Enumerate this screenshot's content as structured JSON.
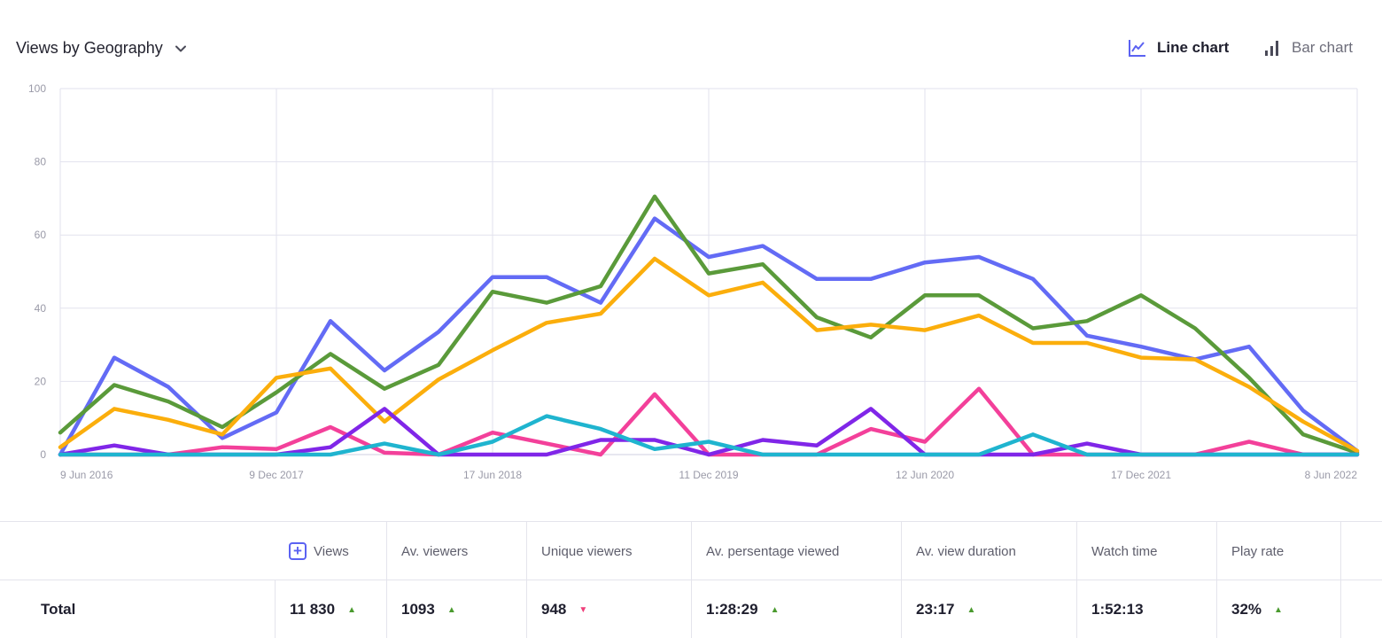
{
  "header": {
    "title": "Views by Geography",
    "line_chart_label": "Line chart",
    "bar_chart_label": "Bar chart",
    "active_view": "line"
  },
  "chart_data": {
    "type": "line",
    "x_labels": [
      "9 Jun 2016",
      "9 Dec 2017",
      "17 Jun 2018",
      "11 Dec 2019",
      "12 Jun 2020",
      "17 Dec 2021",
      "8 Jun 2022"
    ],
    "x_points": 24,
    "y_ticks": [
      0,
      20,
      40,
      60,
      80,
      100
    ],
    "ylim": [
      0,
      100
    ],
    "grid": true,
    "legend": "none",
    "series": [
      {
        "color": "#636bf5",
        "values": [
          0,
          26.5,
          18.5,
          4.5,
          11.5,
          36.5,
          23,
          33.5,
          48.5,
          48.5,
          41.5,
          64.5,
          54,
          57,
          48,
          48,
          52.5,
          54,
          48,
          32.5,
          29.5,
          26,
          29.5,
          12,
          1
        ]
      },
      {
        "color": "#5a9a3a",
        "values": [
          6,
          19,
          14.5,
          7.5,
          17,
          27.5,
          18,
          24.5,
          44.5,
          41.5,
          46,
          70.5,
          49.5,
          52,
          37.5,
          32,
          43.5,
          43.5,
          34.5,
          36.5,
          43.5,
          34.5,
          21,
          5.5,
          0.5
        ]
      },
      {
        "color": "#fbae0c",
        "values": [
          2,
          12.5,
          9.5,
          5.5,
          21,
          23.5,
          9,
          20.5,
          28.5,
          36,
          38.5,
          53.5,
          43.5,
          47,
          34,
          35.5,
          34,
          38,
          30.5,
          30.5,
          26.5,
          26,
          18.5,
          9,
          1
        ]
      },
      {
        "color": "#f3409a",
        "values": [
          0,
          0,
          0,
          2,
          1.5,
          7.5,
          0.5,
          0,
          6,
          3,
          0,
          16.5,
          0,
          0,
          0,
          7,
          3.5,
          18,
          0,
          0,
          0,
          0,
          3.5,
          0,
          0
        ]
      },
      {
        "color": "#8026e8",
        "values": [
          0,
          2.5,
          0,
          0,
          0,
          2,
          12.5,
          0,
          0,
          0,
          4,
          4,
          0,
          4,
          2.5,
          12.5,
          0,
          0,
          0,
          3,
          0,
          0,
          0,
          0,
          0
        ]
      },
      {
        "color": "#1fb4cf",
        "values": [
          0,
          0,
          0,
          0,
          0,
          0,
          3,
          0,
          3.5,
          10.5,
          7,
          1.5,
          3.5,
          0,
          0,
          0,
          0,
          0,
          5.5,
          0,
          0,
          0,
          0,
          0,
          0
        ]
      }
    ]
  },
  "table": {
    "add_icon": "plus-square-icon",
    "columns": [
      "Views",
      "Av. viewers",
      "Unique viewers",
      "Av. persentage viewed",
      "Av. view duration",
      "Watch time",
      "Play rate"
    ],
    "row": {
      "label": "Total",
      "cells": [
        {
          "value": "11 830",
          "trend": "up"
        },
        {
          "value": "1093",
          "trend": "up"
        },
        {
          "value": "948",
          "trend": "down"
        },
        {
          "value": "1:28:29",
          "trend": "up"
        },
        {
          "value": "23:17",
          "trend": "up"
        },
        {
          "value": "1:52:13",
          "trend": "none"
        },
        {
          "value": "32%",
          "trend": "up"
        }
      ]
    },
    "colors": {
      "up": "#4a9a2e",
      "down": "#ef3e7a"
    }
  }
}
